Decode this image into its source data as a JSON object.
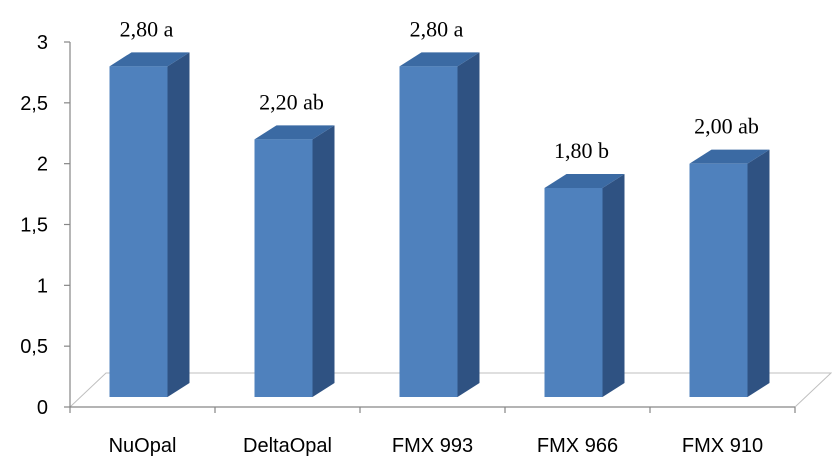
{
  "chart_data": {
    "type": "bar",
    "categories": [
      "NuOpal",
      "DeltaOpal",
      "FMX 993",
      "FMX 966",
      "FMX 910"
    ],
    "values": [
      2.8,
      2.2,
      2.8,
      1.8,
      2.0
    ],
    "data_labels": [
      "2,80 a",
      "2,20 ab",
      "2,80 a",
      "1,80 b",
      "2,00 ab"
    ],
    "y_ticks": [
      "0",
      "0,5",
      "1",
      "1,5",
      "2",
      "2,5",
      "3"
    ],
    "ylim": [
      0,
      3
    ],
    "title": "",
    "xlabel": "",
    "ylabel": "",
    "grid": false,
    "legend": false,
    "style": "3d-column"
  },
  "colors": {
    "bar_front": "#4f81bd",
    "bar_side": "#2f5282",
    "bar_top": "#3b6aa3",
    "axis": "#868686",
    "floor": "#bfbfbf"
  }
}
